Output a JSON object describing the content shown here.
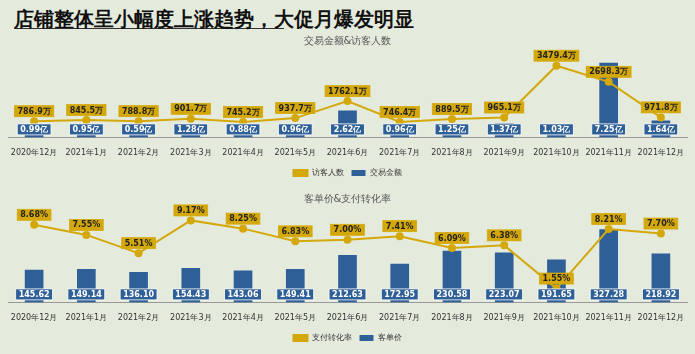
{
  "title": "店铺整体呈小幅度上涨趋势，大促月爆发明显",
  "chart_data": [
    {
      "type": "bar",
      "title": "交易金额&访客人数",
      "categories": [
        "2020年12月",
        "2021年1月",
        "2021年2月",
        "2021年3月",
        "2021年4月",
        "2021年5月",
        "2021年6月",
        "2021年7月",
        "2021年8月",
        "2021年9月",
        "2021年10月",
        "2021年11月",
        "2021年12月"
      ],
      "series": [
        {
          "name": "交易金额",
          "type": "bar",
          "color": "#2e5f97",
          "values": [
            0.99,
            0.95,
            0.59,
            1.28,
            0.88,
            0.96,
            2.62,
            0.96,
            1.25,
            1.37,
            1.03,
            7.25,
            1.64
          ],
          "value_labels": [
            "0.99亿",
            "0.95亿",
            "0.59亿",
            "1.28亿",
            "0.88亿",
            "0.96亿",
            "2.62亿",
            "0.96亿",
            "1.25亿",
            "1.37亿",
            "1.03亿",
            "7.25亿",
            "1.64亿"
          ]
        },
        {
          "name": "访客人数",
          "type": "line",
          "color": "#d4a80a",
          "axis": "y2",
          "marker": "circle",
          "values": [
            786.9,
            845.5,
            788.8,
            901.7,
            745.2,
            937.7,
            1762.1,
            746.4,
            889.5,
            965.1,
            3479.4,
            2698.3,
            971.8
          ],
          "value_labels": [
            "786.9万",
            "845.5万",
            "788.8万",
            "901.7万",
            "745.2万",
            "937.7万",
            "1762.1万",
            "746.4万",
            "889.5万",
            "965.1万",
            "3479.4万",
            "2698.3万",
            "971.8万"
          ]
        }
      ],
      "data_labels": true,
      "legend": "bottom",
      "tick_labels": "x",
      "grid": false
    },
    {
      "type": "bar",
      "title": "客单价&支付转化率",
      "categories": [
        "2020年12月",
        "2021年1月",
        "2021年2月",
        "2021年3月",
        "2021年4月",
        "2021年5月",
        "2021年6月",
        "2021年7月",
        "2021年8月",
        "2021年9月",
        "2021年10月",
        "2021年11月",
        "2021年12月"
      ],
      "series": [
        {
          "name": "客单价",
          "type": "bar",
          "color": "#2e5f97",
          "values": [
            145.62,
            149.14,
            136.1,
            154.43,
            143.06,
            149.41,
            212.63,
            172.95,
            230.58,
            223.07,
            191.65,
            327.28,
            218.92
          ],
          "value_labels": [
            "145.62",
            "149.14",
            "136.10",
            "154.43",
            "143.06",
            "149.41",
            "212.63",
            "172.95",
            "230.58",
            "223.07",
            "191.65",
            "327.28",
            "218.92"
          ]
        },
        {
          "name": "支付转化率",
          "type": "line",
          "color": "#d4a80a",
          "axis": "y2",
          "marker": "circle",
          "values": [
            8.68,
            7.55,
            5.51,
            9.17,
            8.25,
            6.83,
            7.0,
            7.41,
            6.09,
            6.38,
            1.55,
            8.21,
            7.7
          ],
          "value_labels": [
            "8.68%",
            "7.55%",
            "5.51%",
            "9.17%",
            "8.25%",
            "6.83%",
            "7.00%",
            "7.41%",
            "6.09%",
            "6.38%",
            "1.55%",
            "8.21%",
            "7.70%"
          ]
        }
      ],
      "data_labels": true,
      "legend": "bottom",
      "tick_labels": "x",
      "grid": false
    }
  ]
}
